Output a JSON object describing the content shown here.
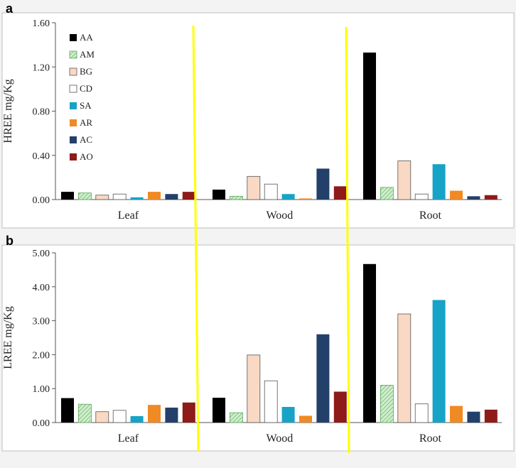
{
  "chart_data": [
    {
      "panel": "a",
      "type": "bar",
      "ylabel": "HREE mg/Kg",
      "ylim": [
        0,
        1.6
      ],
      "yticks": [
        "0.00",
        "0.40",
        "0.80",
        "1.20",
        "1.60"
      ],
      "categories": [
        "Leaf",
        "Wood",
        "Root"
      ],
      "legend_position": "top-left",
      "series": [
        {
          "name": "AA",
          "values": [
            0.07,
            0.09,
            1.33
          ]
        },
        {
          "name": "AM",
          "values": [
            0.06,
            0.03,
            0.11
          ]
        },
        {
          "name": "BG",
          "values": [
            0.04,
            0.21,
            0.35
          ]
        },
        {
          "name": "CD",
          "values": [
            0.05,
            0.14,
            0.05
          ]
        },
        {
          "name": "SA",
          "values": [
            0.02,
            0.05,
            0.32
          ]
        },
        {
          "name": "AR",
          "values": [
            0.07,
            0.01,
            0.08
          ]
        },
        {
          "name": "AC",
          "values": [
            0.05,
            0.28,
            0.03
          ]
        },
        {
          "name": "AO",
          "values": [
            0.07,
            0.12,
            0.04
          ]
        }
      ]
    },
    {
      "panel": "b",
      "type": "bar",
      "ylabel": "LREE mg/Kg",
      "ylim": [
        0,
        5
      ],
      "yticks": [
        "0.00",
        "1.00",
        "2.00",
        "3.00",
        "4.00",
        "5.00"
      ],
      "categories": [
        "Leaf",
        "Wood",
        "Root"
      ],
      "series": [
        {
          "name": "AA",
          "values": [
            0.72,
            0.73,
            4.67
          ]
        },
        {
          "name": "AM",
          "values": [
            0.54,
            0.29,
            1.1
          ]
        },
        {
          "name": "BG",
          "values": [
            0.32,
            1.99,
            3.2
          ]
        },
        {
          "name": "CD",
          "values": [
            0.36,
            1.23,
            0.55
          ]
        },
        {
          "name": "SA",
          "values": [
            0.19,
            0.46,
            3.61
          ]
        },
        {
          "name": "AR",
          "values": [
            0.52,
            0.2,
            0.49
          ]
        },
        {
          "name": "AC",
          "values": [
            0.44,
            2.6,
            0.32
          ]
        },
        {
          "name": "AO",
          "values": [
            0.59,
            0.91,
            0.38
          ]
        }
      ]
    }
  ],
  "series_colors": {
    "AA": "#000000",
    "AM": "#cfeecc",
    "BG": "#f9d9c3",
    "CD": "#ffffff",
    "SA": "#17a3c6",
    "AR": "#f08a24",
    "AC": "#23406a",
    "AO": "#8e1a1a"
  },
  "divider_color": "#ffff00"
}
